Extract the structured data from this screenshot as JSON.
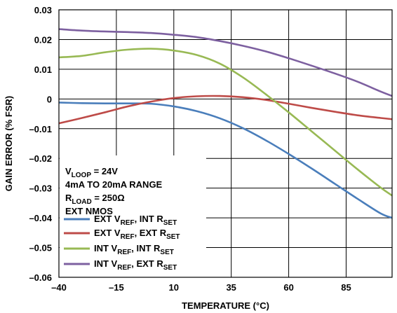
{
  "chart_data": {
    "type": "line",
    "xlabel": "TEMPERATURE (°C)",
    "ylabel": "GAIN ERROR (% FSR)",
    "xlim": [
      -40,
      105
    ],
    "ylim": [
      -0.06,
      0.03
    ],
    "x_ticks": [
      "–40",
      "–15",
      "10",
      "35",
      "60",
      "85"
    ],
    "y_ticks": [
      "0.03",
      "0.02",
      "0.01",
      "0",
      "–0.01",
      "–0.02",
      "–0.03",
      "–0.04",
      "–0.05",
      "–0.06"
    ],
    "grid": true,
    "conditions": [
      {
        "base": "V",
        "sub": "LOOP",
        "rest": " = 24V"
      },
      {
        "base": "4mA TO 20mA RANGE",
        "sub": "",
        "rest": ""
      },
      {
        "base": "R",
        "sub": "LOAD",
        "rest": " = 250Ω"
      },
      {
        "base": "EXT NMOS",
        "sub": "",
        "rest": ""
      }
    ],
    "legend_position": "bottom-left",
    "series": [
      {
        "name": "EXT VREF, INT RSET",
        "label": {
          "a": "EXT V",
          "a_sub": "REF",
          "b": ", INT R",
          "b_sub": "SET"
        },
        "color": "#4a7ebb",
        "x": [
          -40,
          -30,
          -20,
          -10,
          0,
          10,
          20,
          30,
          40,
          50,
          60,
          70,
          80,
          90,
          100,
          105
        ],
        "y": [
          -0.0012,
          -0.0014,
          -0.0015,
          -0.0015,
          -0.0016,
          -0.0025,
          -0.0041,
          -0.0065,
          -0.0098,
          -0.0139,
          -0.0185,
          -0.0234,
          -0.0285,
          -0.0336,
          -0.0385,
          -0.04
        ]
      },
      {
        "name": "EXT VREF, EXT RSET",
        "label": {
          "a": "EXT V",
          "a_sub": "REF",
          "b": ", EXT R",
          "b_sub": "SET"
        },
        "color": "#be4b48",
        "x": [
          -40,
          -30,
          -20,
          -10,
          0,
          10,
          20,
          30,
          40,
          50,
          60,
          70,
          80,
          90,
          100,
          105
        ],
        "y": [
          -0.0082,
          -0.0064,
          -0.0045,
          -0.0025,
          -0.0009,
          0.0003,
          0.0009,
          0.001,
          0.0006,
          -0.0003,
          -0.0016,
          -0.003,
          -0.0043,
          -0.0055,
          -0.0064,
          -0.0068
        ]
      },
      {
        "name": "INT VREF, INT RSET",
        "label": {
          "a": "INT V",
          "a_sub": "REF",
          "b": ", INT R",
          "b_sub": "SET"
        },
        "color": "#98b954",
        "x": [
          -40,
          -30,
          -20,
          -10,
          0,
          10,
          20,
          30,
          40,
          50,
          60,
          70,
          80,
          90,
          100,
          105
        ],
        "y": [
          0.014,
          0.0145,
          0.0157,
          0.0166,
          0.0169,
          0.0163,
          0.0148,
          0.0119,
          0.0073,
          0.0016,
          -0.0045,
          -0.0109,
          -0.0173,
          -0.0237,
          -0.0298,
          -0.0325
        ]
      },
      {
        "name": "INT VREF, EXT RSET",
        "label": {
          "a": "INT V",
          "a_sub": "REF",
          "b": ", EXT R",
          "b_sub": "SET"
        },
        "color": "#7d60a0",
        "x": [
          -40,
          -30,
          -20,
          -10,
          0,
          10,
          20,
          30,
          40,
          50,
          60,
          70,
          80,
          90,
          100,
          105
        ],
        "y": [
          0.0235,
          0.023,
          0.0227,
          0.0225,
          0.0222,
          0.0216,
          0.0208,
          0.0195,
          0.0179,
          0.016,
          0.0137,
          0.0112,
          0.0086,
          0.0058,
          0.0025,
          0.001
        ]
      }
    ]
  }
}
